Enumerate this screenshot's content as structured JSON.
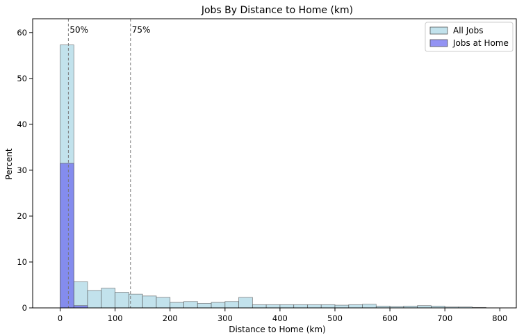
{
  "chart_data": {
    "type": "bar",
    "title": "Jobs By Distance to Home (km)",
    "xlabel": "Distance to Home (km)",
    "ylabel": "Percent",
    "xlim": [
      -50,
      830
    ],
    "ylim": [
      0,
      63
    ],
    "xticks": [
      0,
      100,
      200,
      300,
      400,
      500,
      600,
      700,
      800
    ],
    "yticks": [
      0,
      10,
      20,
      30,
      40,
      50,
      60
    ],
    "bin_edges": [
      0,
      25,
      50,
      75,
      100,
      125,
      150,
      175,
      200,
      225,
      250,
      275,
      300,
      325,
      350,
      375,
      400,
      425,
      450,
      475,
      500,
      525,
      550,
      575,
      600,
      625,
      650,
      675,
      700,
      725,
      750,
      775
    ],
    "series": [
      {
        "name": "All Jobs",
        "color": "#ADD8E6",
        "values": [
          57.3,
          5.7,
          3.8,
          4.3,
          3.4,
          3.0,
          2.6,
          2.3,
          1.2,
          1.4,
          1.0,
          1.2,
          1.4,
          2.3,
          0.7,
          0.7,
          0.7,
          0.7,
          0.7,
          0.7,
          0.6,
          0.7,
          0.8,
          0.4,
          0.3,
          0.4,
          0.5,
          0.4,
          0.2,
          0.2,
          0.1
        ]
      },
      {
        "name": "Jobs at Home",
        "color": "#6F6FEF",
        "values": [
          31.5,
          0.5,
          0,
          0,
          0,
          0,
          0,
          0,
          0,
          0,
          0,
          0,
          0,
          0,
          0,
          0,
          0,
          0,
          0,
          0,
          0,
          0,
          0,
          0,
          0,
          0,
          0,
          0,
          0,
          0,
          0
        ]
      }
    ],
    "annotations": [
      {
        "label": "50%",
        "x": 15
      },
      {
        "label": "75%",
        "x": 128
      }
    ],
    "legend": "top-right",
    "grid": false
  }
}
